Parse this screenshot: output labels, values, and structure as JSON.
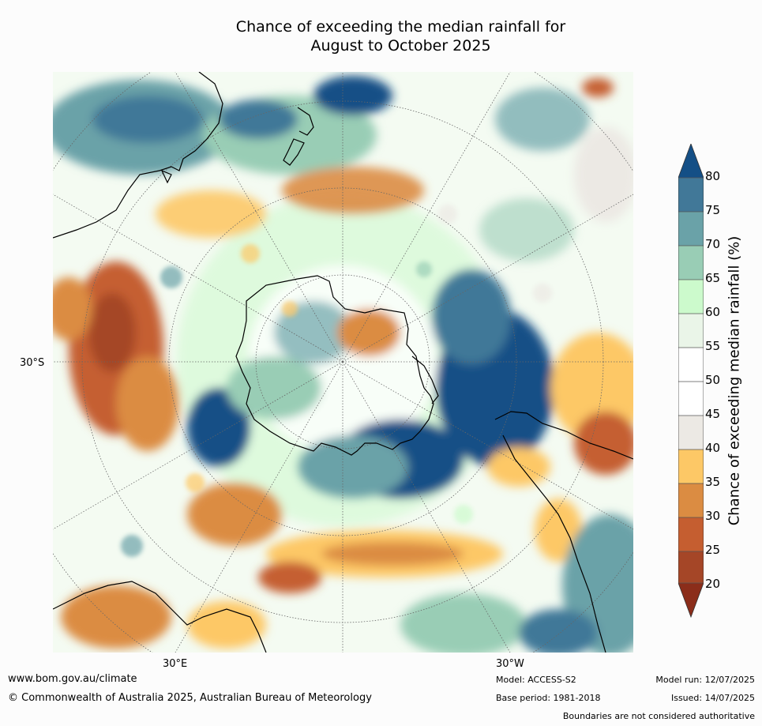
{
  "title": {
    "line1": "Chance of exceeding the median rainfall for",
    "line2": "August to October 2025"
  },
  "map": {
    "projection": "south polar stereographic",
    "longitude_labels": [
      "30°E",
      "30°W"
    ],
    "latitude_label": "30°S",
    "features": [
      "coastlines",
      "graticule",
      "Antarctica",
      "Australia",
      "South America",
      "Africa",
      "New Zealand"
    ]
  },
  "colorbar": {
    "label": "Chance of exceeding median rainfall (%)",
    "ticks": [
      "80",
      "75",
      "70",
      "65",
      "60",
      "55",
      "50",
      "45",
      "40",
      "35",
      "30",
      "25",
      "20"
    ],
    "colors": {
      "20-25": "#a54627",
      "25-30": "#c55e30",
      "30-35": "#db8c42",
      "35-40": "#fdc866",
      "40-45": "#ece9e4",
      "45-55": "#ffffff",
      "55-60": "#eaf5e8",
      "60-65": "#ccfacc",
      "65-70": "#99cdb5",
      "70-75": "#6aa2a8",
      "75-80": "#417898",
      "above_80": "#144f86",
      "below_20": "#8b2d1a"
    }
  },
  "footer": {
    "website": "www.bom.gov.au/climate",
    "copyright": "© Commonwealth of Australia 2025, Australian Bureau of Meteorology",
    "model": "Model: ACCESS-S2",
    "base_period": "Base period: 1981-2018",
    "model_run": "Model run: 12/07/2025",
    "issued": "Issued: 14/07/2025",
    "disclaimer": "Boundaries are not considered authoritative"
  }
}
